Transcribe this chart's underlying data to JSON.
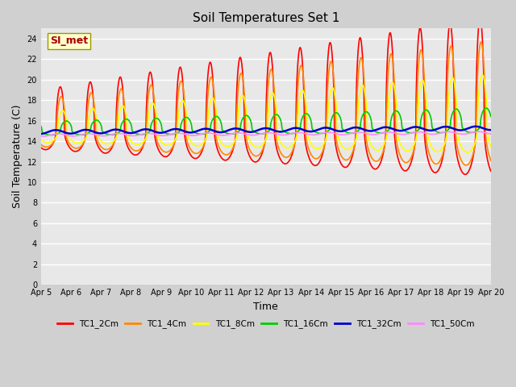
{
  "title": "Soil Temperatures Set 1",
  "xlabel": "Time",
  "ylabel": "Soil Temperature (C)",
  "ylim": [
    0,
    25
  ],
  "yticks": [
    0,
    2,
    4,
    6,
    8,
    10,
    12,
    14,
    16,
    18,
    20,
    22,
    24
  ],
  "annotation_text": "SI_met",
  "annotation_bg": "#ffffcc",
  "annotation_border": "#999900",
  "annotation_text_color": "#aa0000",
  "fig_bg": "#d0d0d0",
  "plot_bg": "#e8e8e8",
  "series": {
    "TC1_2Cm": {
      "color": "#ff0000",
      "lw": 1.2
    },
    "TC1_4Cm": {
      "color": "#ff8800",
      "lw": 1.2
    },
    "TC1_8Cm": {
      "color": "#ffff00",
      "lw": 1.2
    },
    "TC1_16Cm": {
      "color": "#00cc00",
      "lw": 1.2
    },
    "TC1_32Cm": {
      "color": "#0000cc",
      "lw": 1.8
    },
    "TC1_50Cm": {
      "color": "#ff88ff",
      "lw": 1.2
    }
  },
  "xtick_days": [
    5,
    6,
    7,
    8,
    9,
    10,
    11,
    12,
    13,
    14,
    15,
    16,
    17,
    18,
    19,
    20
  ]
}
